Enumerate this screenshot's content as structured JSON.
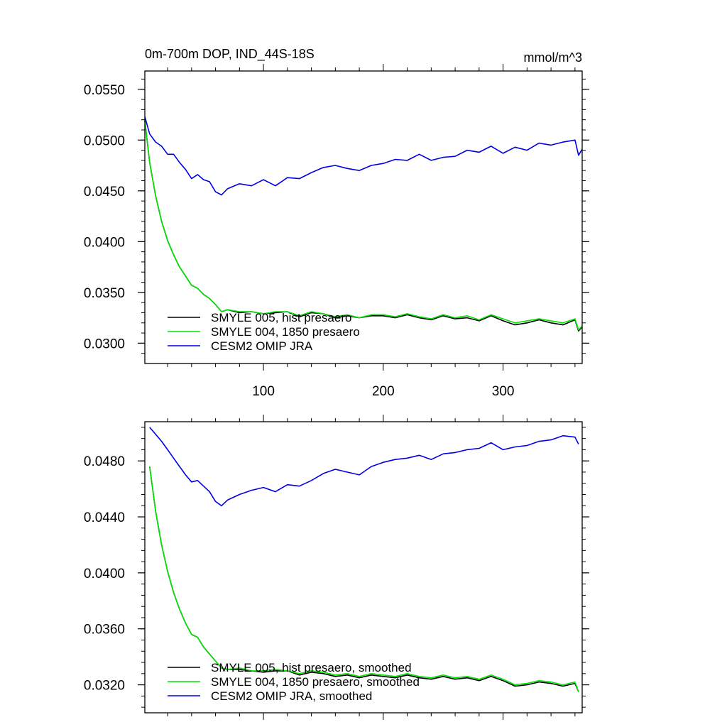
{
  "chart_data": [
    {
      "type": "line",
      "title": "0m-700m DOP, IND_44S-18S",
      "units": "mmol/m^3",
      "xlabel": "",
      "ylabel": "",
      "xlim": [
        1,
        366
      ],
      "ylim": [
        0.028,
        0.0568
      ],
      "xticks": [
        100,
        200,
        300
      ],
      "yticks": [
        0.055,
        0.05,
        0.045,
        0.04,
        0.035,
        0.03
      ],
      "ytick_labels": [
        "0.0550",
        "0.0500",
        "0.0450",
        "0.0400",
        "0.0350",
        "0.0300"
      ],
      "legend_position": "bottom-left",
      "x": [
        1,
        5,
        10,
        15,
        20,
        25,
        30,
        35,
        40,
        45,
        50,
        55,
        60,
        65,
        70,
        80,
        90,
        100,
        110,
        120,
        130,
        140,
        150,
        160,
        170,
        180,
        190,
        200,
        210,
        220,
        230,
        240,
        250,
        260,
        270,
        280,
        290,
        300,
        310,
        320,
        330,
        340,
        350,
        360,
        363,
        366
      ],
      "series": [
        {
          "name": "SMYLE 005, hist presaero",
          "color": "#000000",
          "values": [
            0.0519,
            0.0478,
            0.0445,
            0.042,
            0.0401,
            0.0387,
            0.0375,
            0.0366,
            0.0357,
            0.0354,
            0.0348,
            0.0344,
            0.0338,
            0.0331,
            0.0333,
            0.033,
            0.0331,
            0.0329,
            0.033,
            0.0331,
            0.0326,
            0.033,
            0.0329,
            0.0325,
            0.0327,
            0.0325,
            0.0327,
            0.0327,
            0.0325,
            0.0328,
            0.0325,
            0.0323,
            0.0327,
            0.0324,
            0.0325,
            0.0322,
            0.0327,
            0.0322,
            0.0318,
            0.032,
            0.0323,
            0.032,
            0.0318,
            0.0323,
            0.0312,
            0.0316
          ]
        },
        {
          "name": "SMYLE 004, 1850 presaero",
          "color": "#00e600",
          "values": [
            0.0519,
            0.0478,
            0.0445,
            0.042,
            0.0401,
            0.0387,
            0.0375,
            0.0366,
            0.0357,
            0.0354,
            0.0348,
            0.0344,
            0.0338,
            0.0331,
            0.0333,
            0.0331,
            0.0331,
            0.0329,
            0.0331,
            0.0331,
            0.0327,
            0.0331,
            0.0329,
            0.0326,
            0.0328,
            0.0325,
            0.0328,
            0.0328,
            0.0326,
            0.0329,
            0.0326,
            0.0324,
            0.0328,
            0.0325,
            0.0327,
            0.0323,
            0.0328,
            0.0324,
            0.032,
            0.0322,
            0.0324,
            0.0322,
            0.032,
            0.0324,
            0.0313,
            0.0317
          ]
        },
        {
          "name": "CESM2 OMIP JRA",
          "color": "#0000e6",
          "values": [
            0.0523,
            0.0506,
            0.0498,
            0.0494,
            0.0486,
            0.0486,
            0.0478,
            0.0471,
            0.0462,
            0.0466,
            0.0461,
            0.0459,
            0.0449,
            0.0446,
            0.0452,
            0.0457,
            0.0455,
            0.0461,
            0.0455,
            0.0463,
            0.0462,
            0.0468,
            0.0473,
            0.0475,
            0.0472,
            0.047,
            0.0475,
            0.0477,
            0.0481,
            0.048,
            0.0486,
            0.048,
            0.0483,
            0.0484,
            0.049,
            0.0488,
            0.0494,
            0.0487,
            0.0493,
            0.049,
            0.0497,
            0.0495,
            0.0498,
            0.05,
            0.0485,
            0.0491
          ]
        }
      ]
    },
    {
      "type": "line",
      "title": "",
      "xlabel": "",
      "ylabel": "",
      "xlim": [
        1,
        366
      ],
      "ylim": [
        0.03,
        0.0508
      ],
      "xticks": [
        100,
        200,
        300
      ],
      "yticks": [
        0.048,
        0.044,
        0.04,
        0.036,
        0.032
      ],
      "ytick_labels": [
        "0.0480",
        "0.0440",
        "0.0400",
        "0.0360",
        "0.0320"
      ],
      "legend_position": "bottom-left",
      "x": [
        5,
        10,
        15,
        20,
        25,
        30,
        35,
        40,
        45,
        50,
        55,
        60,
        65,
        70,
        80,
        90,
        100,
        110,
        120,
        130,
        140,
        150,
        160,
        170,
        180,
        190,
        200,
        210,
        220,
        230,
        240,
        250,
        260,
        270,
        280,
        290,
        300,
        310,
        320,
        330,
        340,
        350,
        360,
        363
      ],
      "series": [
        {
          "name": "SMYLE 005, hist presaero, smoothed",
          "color": "#000000",
          "values": [
            0.0476,
            0.0444,
            0.042,
            0.0401,
            0.0386,
            0.0374,
            0.0364,
            0.0356,
            0.0354,
            0.0347,
            0.0342,
            0.0337,
            0.0332,
            0.0331,
            0.0331,
            0.033,
            0.0329,
            0.033,
            0.033,
            0.0327,
            0.0329,
            0.0328,
            0.0326,
            0.0327,
            0.0325,
            0.0327,
            0.0326,
            0.0325,
            0.0327,
            0.0325,
            0.0324,
            0.0326,
            0.0324,
            0.0325,
            0.0323,
            0.0326,
            0.0323,
            0.0319,
            0.032,
            0.0322,
            0.0321,
            0.0319,
            0.0321,
            0.0315
          ]
        },
        {
          "name": "SMYLE 004, 1850 presaero, smoothed",
          "color": "#00e600",
          "values": [
            0.0476,
            0.0444,
            0.042,
            0.0401,
            0.0386,
            0.0374,
            0.0364,
            0.0356,
            0.0354,
            0.0347,
            0.0342,
            0.0337,
            0.0332,
            0.0331,
            0.0332,
            0.033,
            0.033,
            0.0331,
            0.033,
            0.0328,
            0.033,
            0.0329,
            0.0327,
            0.0328,
            0.0326,
            0.0328,
            0.0327,
            0.0326,
            0.0328,
            0.0326,
            0.0325,
            0.0327,
            0.0325,
            0.0326,
            0.0324,
            0.0327,
            0.0324,
            0.032,
            0.0321,
            0.0323,
            0.0322,
            0.032,
            0.0322,
            0.0315
          ]
        },
        {
          "name": "CESM2 OMIP JRA, smoothed",
          "color": "#0000e6",
          "values": [
            0.0504,
            0.0499,
            0.0494,
            0.0488,
            0.0482,
            0.0476,
            0.047,
            0.0465,
            0.0466,
            0.0462,
            0.0458,
            0.0451,
            0.0448,
            0.0452,
            0.0456,
            0.0459,
            0.0461,
            0.0458,
            0.0463,
            0.0462,
            0.0466,
            0.0471,
            0.0474,
            0.0472,
            0.047,
            0.0476,
            0.0479,
            0.0481,
            0.0482,
            0.0484,
            0.0481,
            0.0485,
            0.0486,
            0.0488,
            0.0489,
            0.0493,
            0.0488,
            0.049,
            0.0491,
            0.0494,
            0.0495,
            0.0498,
            0.0497,
            0.0492
          ]
        }
      ]
    }
  ]
}
